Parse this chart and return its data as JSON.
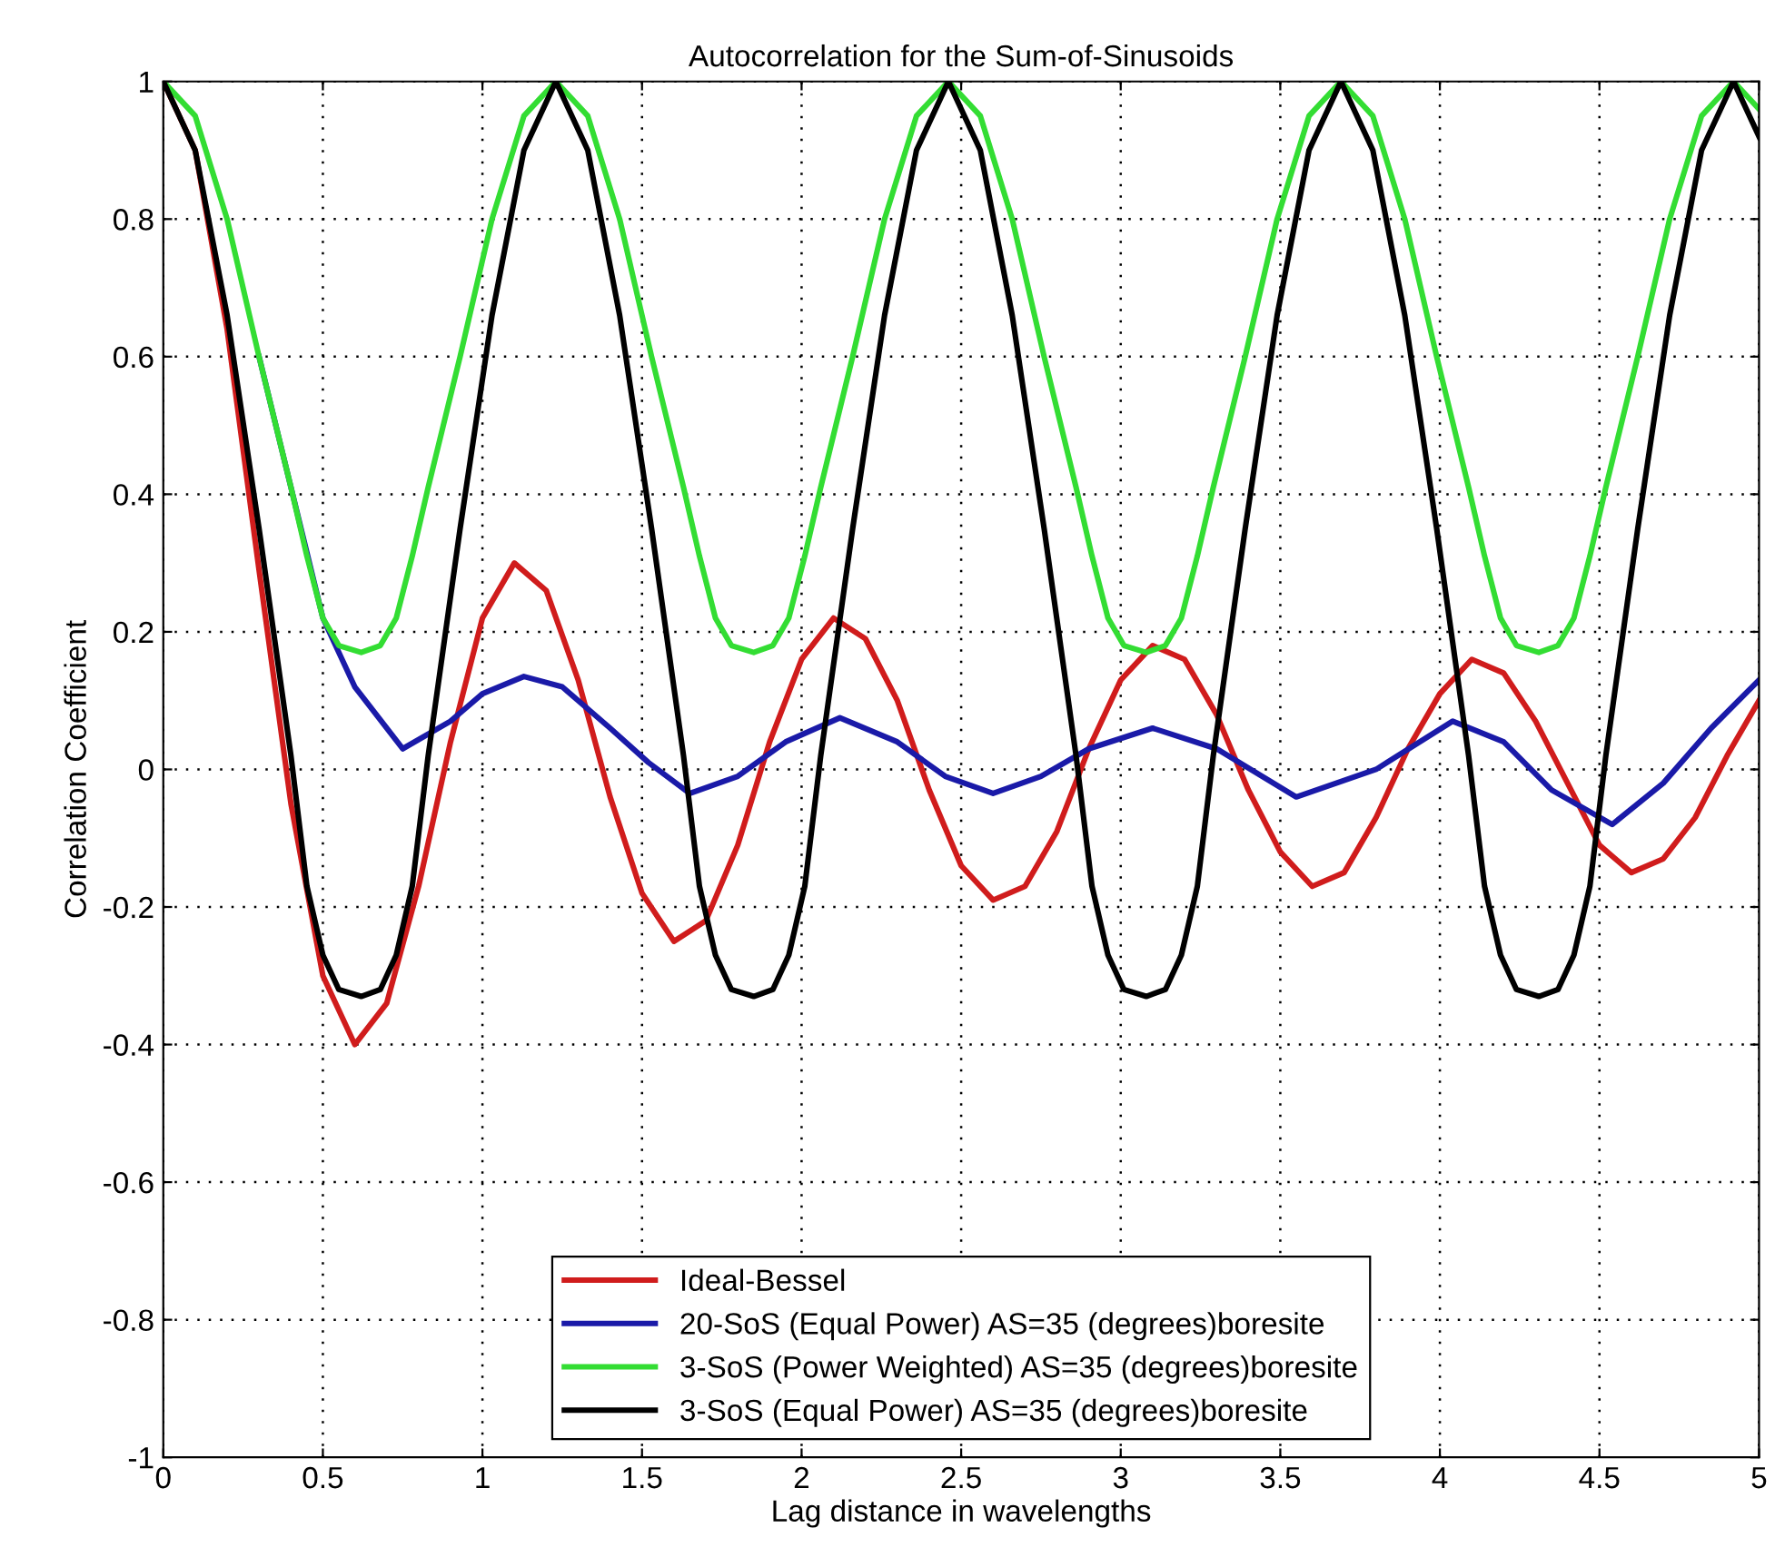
{
  "chart_data": {
    "type": "line",
    "title": "Autocorrelation for the Sum-of-Sinusoids",
    "xlabel": "Lag distance in wavelengths",
    "ylabel": "Correlation Coefficient",
    "xlim": [
      0,
      5
    ],
    "xticks": [
      0,
      0.5,
      1,
      1.5,
      2,
      2.5,
      3,
      3.5,
      4,
      4.5,
      5
    ],
    "ylim": [
      -1,
      1
    ],
    "yticks": [
      -1,
      -0.8,
      -0.6,
      -0.4,
      -0.2,
      0,
      0.2,
      0.4,
      0.6,
      0.8,
      1
    ],
    "grid": true,
    "legend": "bottom",
    "line_style": "solid",
    "marker": "none",
    "series": [
      {
        "name": "Ideal-Bessel",
        "color": "#d01c1c",
        "x": [
          0,
          0.1,
          0.2,
          0.3,
          0.4,
          0.5,
          0.6,
          0.7,
          0.8,
          0.9,
          1.0,
          1.1,
          1.2,
          1.3,
          1.4,
          1.5,
          1.6,
          1.7,
          1.8,
          1.9,
          2.0,
          2.1,
          2.2,
          2.3,
          2.4,
          2.5,
          2.6,
          2.7,
          2.8,
          2.9,
          3.0,
          3.1,
          3.2,
          3.3,
          3.4,
          3.5,
          3.6,
          3.7,
          3.8,
          3.9,
          4.0,
          4.1,
          4.2,
          4.3,
          4.4,
          4.5,
          4.6,
          4.7,
          4.8,
          4.9,
          5.0
        ],
        "values": [
          1.0,
          0.9,
          0.64,
          0.29,
          -0.05,
          -0.3,
          -0.4,
          -0.34,
          -0.17,
          0.04,
          0.22,
          0.3,
          0.26,
          0.13,
          -0.04,
          -0.18,
          -0.25,
          -0.22,
          -0.11,
          0.04,
          0.16,
          0.22,
          0.19,
          0.1,
          -0.03,
          -0.14,
          -0.19,
          -0.17,
          -0.09,
          0.03,
          0.13,
          0.18,
          0.16,
          0.08,
          -0.03,
          -0.12,
          -0.17,
          -0.15,
          -0.07,
          0.03,
          0.11,
          0.16,
          0.14,
          0.07,
          -0.02,
          -0.11,
          -0.15,
          -0.13,
          -0.07,
          0.02,
          0.1
        ]
      },
      {
        "name": "20-SoS (Equal Power) AS=35 (degrees)boresite",
        "color": "#1a1aa8",
        "x": [
          0.3,
          0.4,
          0.5,
          0.6,
          0.75,
          0.9,
          1.0,
          1.13,
          1.25,
          1.4,
          1.52,
          1.65,
          1.8,
          1.95,
          2.12,
          2.3,
          2.45,
          2.6,
          2.75,
          2.9,
          3.1,
          3.3,
          3.55,
          3.8,
          4.04,
          4.2,
          4.35,
          4.54,
          4.7,
          4.85,
          5.0
        ],
        "values": [
          0.6,
          0.41,
          0.22,
          0.12,
          0.03,
          0.07,
          0.11,
          0.135,
          0.12,
          0.06,
          0.01,
          -0.035,
          -0.01,
          0.04,
          0.075,
          0.04,
          -0.01,
          -0.035,
          -0.01,
          0.03,
          0.06,
          0.03,
          -0.04,
          0.0,
          0.07,
          0.04,
          -0.03,
          -0.08,
          -0.02,
          0.06,
          0.13
        ]
      },
      {
        "name": "3-SoS (Power Weighted) AS=35 (degrees)boresite",
        "color": "#33dd33",
        "x": [
          0,
          0.1,
          0.2,
          0.3,
          0.4,
          0.45,
          0.5,
          0.55,
          0.62,
          0.68,
          0.73,
          0.78,
          0.83,
          0.93,
          1.03,
          1.13,
          1.23,
          1.33,
          1.43,
          1.53,
          1.63,
          1.68,
          1.73,
          1.78,
          1.85,
          1.91,
          1.96,
          2.01,
          2.06,
          2.16,
          2.26,
          2.36,
          2.46,
          2.56,
          2.66,
          2.76,
          2.86,
          2.91,
          2.96,
          3.01,
          3.08,
          3.14,
          3.19,
          3.24,
          3.29,
          3.39,
          3.49,
          3.59,
          3.69,
          3.79,
          3.89,
          3.99,
          4.09,
          4.14,
          4.19,
          4.24,
          4.31,
          4.37,
          4.42,
          4.47,
          4.52,
          4.62,
          4.72,
          4.82,
          4.92,
          5.0
        ],
        "values": [
          1.0,
          0.95,
          0.8,
          0.6,
          0.41,
          0.31,
          0.22,
          0.18,
          0.17,
          0.18,
          0.22,
          0.31,
          0.41,
          0.6,
          0.8,
          0.95,
          1.0,
          0.95,
          0.8,
          0.6,
          0.41,
          0.31,
          0.22,
          0.18,
          0.17,
          0.18,
          0.22,
          0.31,
          0.41,
          0.6,
          0.8,
          0.95,
          1.0,
          0.95,
          0.8,
          0.6,
          0.41,
          0.31,
          0.22,
          0.18,
          0.17,
          0.18,
          0.22,
          0.31,
          0.41,
          0.6,
          0.8,
          0.95,
          1.0,
          0.95,
          0.8,
          0.6,
          0.41,
          0.31,
          0.22,
          0.18,
          0.17,
          0.18,
          0.22,
          0.31,
          0.41,
          0.6,
          0.8,
          0.95,
          1.0,
          0.96
        ]
      },
      {
        "name": "3-SoS (Equal Power) AS=35 (degrees)boresite",
        "color": "#000000",
        "x": [
          0,
          0.1,
          0.2,
          0.3,
          0.4,
          0.45,
          0.5,
          0.55,
          0.62,
          0.68,
          0.73,
          0.78,
          0.83,
          0.93,
          1.03,
          1.13,
          1.23,
          1.33,
          1.43,
          1.53,
          1.63,
          1.68,
          1.73,
          1.78,
          1.85,
          1.91,
          1.96,
          2.01,
          2.06,
          2.16,
          2.26,
          2.36,
          2.46,
          2.56,
          2.66,
          2.76,
          2.86,
          2.91,
          2.96,
          3.01,
          3.08,
          3.14,
          3.19,
          3.24,
          3.29,
          3.39,
          3.49,
          3.59,
          3.69,
          3.79,
          3.89,
          3.99,
          4.09,
          4.14,
          4.19,
          4.24,
          4.31,
          4.37,
          4.42,
          4.47,
          4.52,
          4.62,
          4.72,
          4.82,
          4.92,
          5.0
        ],
        "values": [
          1.0,
          0.9,
          0.66,
          0.35,
          0.02,
          -0.17,
          -0.27,
          -0.32,
          -0.33,
          -0.32,
          -0.27,
          -0.17,
          0.02,
          0.35,
          0.66,
          0.9,
          1.0,
          0.9,
          0.66,
          0.35,
          0.02,
          -0.17,
          -0.27,
          -0.32,
          -0.33,
          -0.32,
          -0.27,
          -0.17,
          0.02,
          0.35,
          0.66,
          0.9,
          1.0,
          0.9,
          0.66,
          0.35,
          0.02,
          -0.17,
          -0.27,
          -0.32,
          -0.33,
          -0.32,
          -0.27,
          -0.17,
          0.02,
          0.35,
          0.66,
          0.9,
          1.0,
          0.9,
          0.66,
          0.35,
          0.02,
          -0.17,
          -0.27,
          -0.32,
          -0.33,
          -0.32,
          -0.27,
          -0.17,
          0.02,
          0.35,
          0.66,
          0.9,
          1.0,
          0.92
        ]
      }
    ]
  }
}
